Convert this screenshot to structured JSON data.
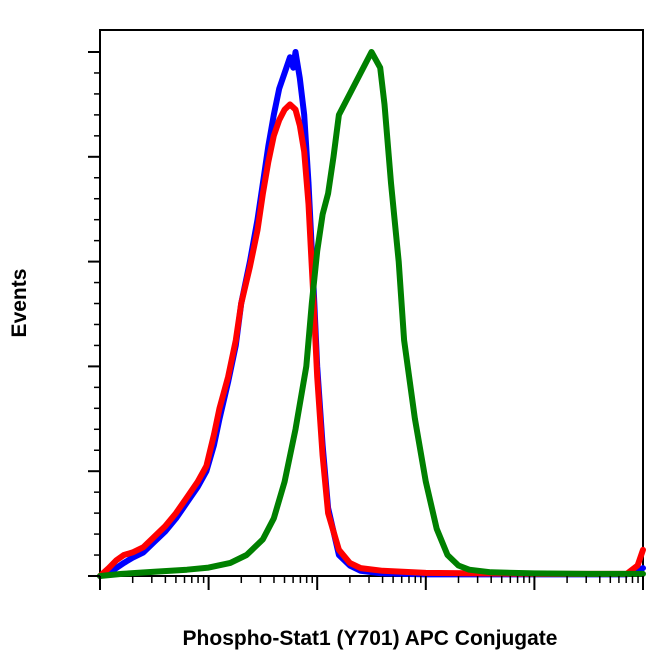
{
  "chart_data": {
    "type": "line",
    "title": "",
    "xlabel": "Phospho-Stat1 (Y701) APC Conjugate",
    "ylabel": "Events",
    "x_scale": "log",
    "xlim": [
      0,
      5
    ],
    "ylim": [
      0,
      100
    ],
    "grid": false,
    "legend": "none",
    "tick_labels_shown": false,
    "series": [
      {
        "color": "#0000ff",
        "x": [
          0,
          0.08,
          0.15,
          0.22,
          0.3,
          0.4,
          0.5,
          0.6,
          0.7,
          0.8,
          0.9,
          0.98,
          1.05,
          1.1,
          1.18,
          1.25,
          1.3,
          1.38,
          1.45,
          1.5,
          1.55,
          1.6,
          1.65,
          1.7,
          1.75,
          1.78,
          1.8,
          1.84,
          1.88,
          1.92,
          1.96,
          2.0,
          2.05,
          2.1,
          2.2,
          2.3,
          2.4,
          2.6,
          3.0,
          3.5,
          4.0,
          4.5,
          4.85,
          4.95,
          5.0
        ],
        "y": [
          0,
          0.5,
          1.5,
          2.5,
          3.5,
          4.5,
          6.5,
          8.5,
          11,
          14,
          17,
          20,
          25,
          30,
          37,
          44,
          52,
          60,
          68,
          75,
          82,
          88,
          93,
          96,
          99,
          97,
          100,
          95,
          88,
          75,
          58,
          40,
          25,
          13,
          4,
          2,
          1,
          0.5,
          0.3,
          0.3,
          0.3,
          0.3,
          0.3,
          1,
          1.5
        ]
      },
      {
        "color": "#ff0000",
        "x": [
          0,
          0.08,
          0.15,
          0.22,
          0.3,
          0.4,
          0.5,
          0.6,
          0.7,
          0.8,
          0.9,
          0.98,
          1.05,
          1.1,
          1.18,
          1.25,
          1.3,
          1.38,
          1.45,
          1.5,
          1.55,
          1.6,
          1.65,
          1.7,
          1.75,
          1.8,
          1.84,
          1.88,
          1.92,
          1.96,
          2.0,
          2.05,
          2.1,
          2.2,
          2.3,
          2.4,
          2.6,
          3.0,
          3.5,
          4.0,
          4.5,
          4.85,
          4.95,
          5.0
        ],
        "y": [
          0,
          1.5,
          3,
          4,
          4.5,
          5.5,
          7.5,
          9.5,
          12,
          15,
          18,
          21,
          27,
          32,
          38,
          45,
          52,
          59,
          66,
          73,
          79,
          84,
          87,
          89,
          90,
          89,
          86,
          81,
          71,
          55,
          38,
          23,
          12,
          5,
          2.5,
          1.5,
          1,
          0.6,
          0.5,
          0.4,
          0.4,
          0.4,
          2,
          5
        ]
      },
      {
        "color": "#008000",
        "x": [
          0,
          0.2,
          0.5,
          0.8,
          1.0,
          1.2,
          1.35,
          1.5,
          1.6,
          1.7,
          1.8,
          1.9,
          1.95,
          2.0,
          2.05,
          2.1,
          2.15,
          2.2,
          2.3,
          2.4,
          2.5,
          2.58,
          2.62,
          2.68,
          2.75,
          2.8,
          2.9,
          3.0,
          3.1,
          3.2,
          3.3,
          3.4,
          3.6,
          4.0,
          4.5,
          5.0
        ],
        "y": [
          0,
          0.4,
          0.8,
          1.2,
          1.6,
          2.5,
          4,
          7,
          11,
          18,
          28,
          40,
          52,
          62,
          69,
          73,
          80,
          88,
          92,
          96,
          100,
          97,
          90,
          75,
          60,
          45,
          30,
          18,
          9,
          4,
          2,
          1.2,
          0.7,
          0.5,
          0.4,
          0.4
        ]
      }
    ]
  }
}
